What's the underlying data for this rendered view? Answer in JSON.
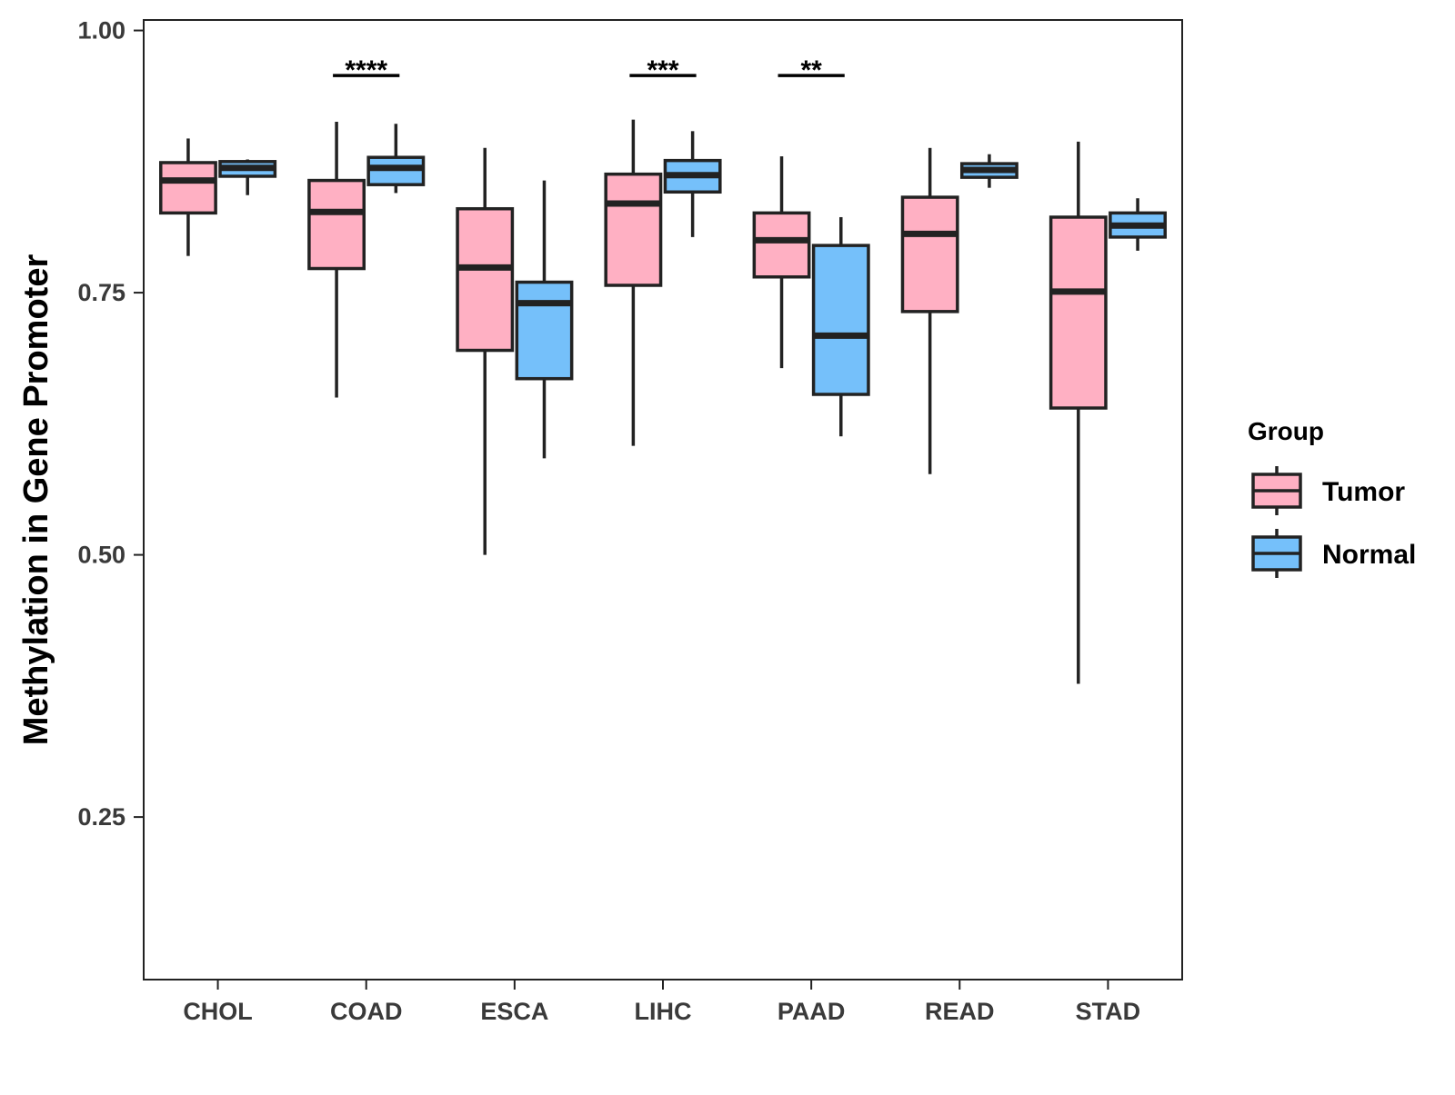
{
  "chart_data": {
    "type": "boxplot",
    "title": "",
    "xlabel": "",
    "ylabel": "Methylation in Gene Promoter",
    "ylim": [
      0.095,
      1.01
    ],
    "yticks": [
      0.25,
      0.5,
      0.75,
      1.0
    ],
    "ytick_labels": [
      "0.25",
      "0.50",
      "0.75",
      "1.00"
    ],
    "grid": false,
    "categories": [
      "CHOL",
      "COAD",
      "ESCA",
      "LIHC",
      "PAAD",
      "READ",
      "STAD"
    ],
    "legend": {
      "title": "Group",
      "position": "right",
      "entries": [
        "Tumor",
        "Normal"
      ]
    },
    "colors": {
      "Tumor": "#ffb0c3",
      "Normal": "#75c0fa",
      "outline": "#222222"
    },
    "series": [
      {
        "name": "Tumor",
        "boxes": [
          {
            "min": 0.785,
            "q1": 0.826,
            "median": 0.857,
            "q3": 0.874,
            "max": 0.897
          },
          {
            "min": 0.65,
            "q1": 0.773,
            "median": 0.827,
            "q3": 0.857,
            "max": 0.913
          },
          {
            "min": 0.5,
            "q1": 0.695,
            "median": 0.774,
            "q3": 0.83,
            "max": 0.888
          },
          {
            "min": 0.604,
            "q1": 0.757,
            "median": 0.835,
            "q3": 0.863,
            "max": 0.915
          },
          {
            "min": 0.678,
            "q1": 0.765,
            "median": 0.8,
            "q3": 0.826,
            "max": 0.88
          },
          {
            "min": 0.577,
            "q1": 0.732,
            "median": 0.806,
            "q3": 0.841,
            "max": 0.888
          },
          {
            "min": 0.377,
            "q1": 0.64,
            "median": 0.751,
            "q3": 0.822,
            "max": 0.894
          }
        ]
      },
      {
        "name": "Normal",
        "boxes": [
          {
            "min": 0.843,
            "q1": 0.861,
            "median": 0.869,
            "q3": 0.875,
            "max": 0.877
          },
          {
            "min": 0.845,
            "q1": 0.853,
            "median": 0.869,
            "q3": 0.879,
            "max": 0.911
          },
          {
            "min": 0.592,
            "q1": 0.668,
            "median": 0.74,
            "q3": 0.76,
            "max": 0.857
          },
          {
            "min": 0.803,
            "q1": 0.846,
            "median": 0.862,
            "q3": 0.876,
            "max": 0.904
          },
          {
            "min": 0.613,
            "q1": 0.653,
            "median": 0.709,
            "q3": 0.795,
            "max": 0.822
          },
          {
            "min": 0.85,
            "q1": 0.86,
            "median": 0.867,
            "q3": 0.873,
            "max": 0.882
          },
          {
            "min": 0.79,
            "q1": 0.803,
            "median": 0.814,
            "q3": 0.826,
            "max": 0.84
          }
        ]
      }
    ],
    "annotations": [
      {
        "category": "COAD",
        "label": "****"
      },
      {
        "category": "LIHC",
        "label": "***"
      },
      {
        "category": "PAAD",
        "label": "**"
      }
    ]
  }
}
